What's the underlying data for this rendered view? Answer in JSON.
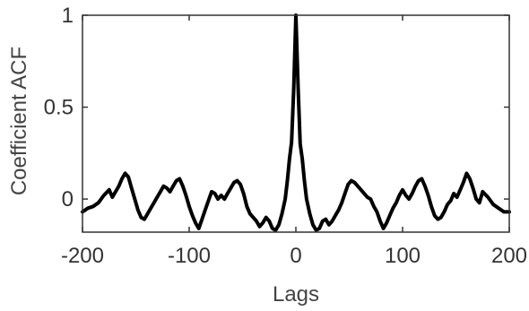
{
  "chart_data": {
    "type": "line",
    "title": "",
    "xlabel": "Lags",
    "ylabel": "Coefficient ACF",
    "xlim": [
      -200,
      200
    ],
    "ylim": [
      -0.18,
      1
    ],
    "xticks": [
      -200,
      -100,
      0,
      100,
      200
    ],
    "xtick_labels": [
      "-200",
      "-100",
      "0",
      "100",
      "200"
    ],
    "yticks": [
      0,
      0.5,
      1
    ],
    "ytick_labels": [
      "0",
      "0.5",
      "1"
    ],
    "grid": false,
    "legend": "none",
    "line_color": "#000000",
    "series": [
      {
        "x": [
          -200,
          -195,
          -190,
          -185,
          -180,
          -175,
          -172,
          -169,
          -166,
          -163,
          -160,
          -157,
          -154,
          -151,
          -148,
          -145,
          -142,
          -139,
          -136,
          -133,
          -130,
          -127,
          -124,
          -121,
          -118,
          -115,
          -112,
          -109,
          -106,
          -103,
          -100,
          -97,
          -94,
          -91,
          -88,
          -85,
          -82,
          -79,
          -76,
          -73,
          -70,
          -67,
          -64,
          -61,
          -58,
          -55,
          -52,
          -49,
          -46,
          -43,
          -40,
          -37,
          -34,
          -31,
          -28,
          -25,
          -22,
          -19,
          -16,
          -13,
          -10,
          -8,
          -6,
          -4,
          -2,
          0,
          2,
          4,
          6,
          8,
          10,
          13,
          16,
          19,
          22,
          25,
          28,
          31,
          34,
          37,
          40,
          43,
          46,
          49,
          52,
          55,
          58,
          61,
          64,
          67,
          70,
          73,
          76,
          79,
          82,
          85,
          88,
          91,
          94,
          97,
          100,
          103,
          106,
          109,
          112,
          115,
          118,
          121,
          124,
          127,
          130,
          133,
          136,
          139,
          142,
          145,
          148,
          151,
          154,
          157,
          160,
          163,
          166,
          169,
          172,
          175,
          180,
          185,
          190,
          195,
          200
        ],
        "y": [
          -0.07,
          -0.05,
          -0.04,
          -0.02,
          0.02,
          0.05,
          0.01,
          0.04,
          0.07,
          0.11,
          0.14,
          0.12,
          0.06,
          0.0,
          -0.06,
          -0.1,
          -0.11,
          -0.08,
          -0.05,
          -0.02,
          0.01,
          0.04,
          0.07,
          0.06,
          0.04,
          0.07,
          0.1,
          0.11,
          0.07,
          0.02,
          -0.04,
          -0.09,
          -0.13,
          -0.16,
          -0.11,
          -0.06,
          -0.01,
          0.04,
          0.03,
          0.0,
          0.02,
          0.0,
          0.03,
          0.06,
          0.09,
          0.1,
          0.08,
          0.03,
          -0.04,
          -0.08,
          -0.1,
          -0.12,
          -0.15,
          -0.13,
          -0.1,
          -0.12,
          -0.16,
          -0.17,
          -0.14,
          -0.08,
          0.0,
          0.1,
          0.22,
          0.31,
          0.6,
          1.0,
          0.62,
          0.3,
          0.22,
          0.1,
          0.0,
          -0.08,
          -0.14,
          -0.17,
          -0.16,
          -0.12,
          -0.11,
          -0.14,
          -0.12,
          -0.09,
          -0.06,
          -0.02,
          0.03,
          0.08,
          0.1,
          0.09,
          0.07,
          0.05,
          0.03,
          0.01,
          0.0,
          -0.04,
          -0.07,
          -0.12,
          -0.16,
          -0.13,
          -0.09,
          -0.05,
          -0.02,
          0.02,
          0.05,
          0.02,
          0.0,
          0.03,
          0.07,
          0.1,
          0.11,
          0.07,
          0.02,
          -0.04,
          -0.09,
          -0.11,
          -0.1,
          -0.07,
          -0.03,
          -0.01,
          0.03,
          0.01,
          0.05,
          0.09,
          0.14,
          0.11,
          0.06,
          0.0,
          -0.02,
          0.04,
          0.01,
          -0.03,
          -0.05,
          -0.07,
          -0.07
        ]
      }
    ]
  }
}
